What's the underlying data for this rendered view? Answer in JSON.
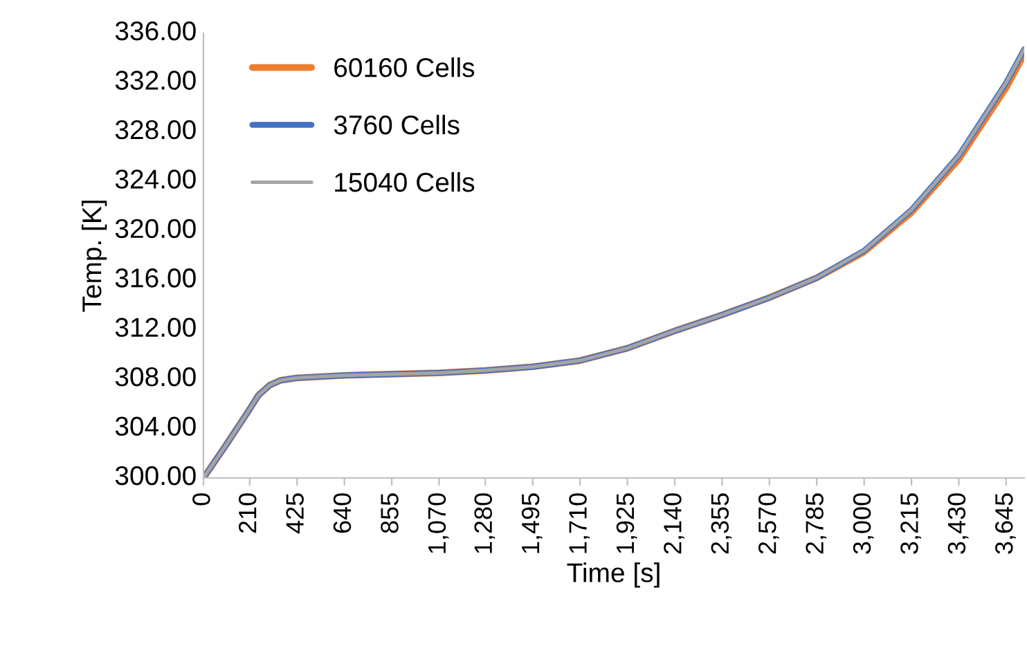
{
  "chart_data": {
    "type": "line",
    "xlabel": "Time [s]",
    "ylabel": "Temp. [K]",
    "x": [
      0,
      100,
      200,
      250,
      300,
      350,
      425,
      640,
      855,
      1070,
      1280,
      1495,
      1710,
      1925,
      2140,
      2355,
      2570,
      2785,
      3000,
      3215,
      3430,
      3645,
      3727
    ],
    "series": [
      {
        "name": "60160 Cells",
        "color": "#ed7d31",
        "values": [
          300.0,
          302.6,
          305.3,
          306.7,
          307.5,
          307.9,
          308.1,
          308.3,
          308.4,
          308.5,
          308.7,
          309.0,
          309.5,
          310.5,
          311.9,
          313.2,
          314.6,
          316.2,
          318.3,
          321.5,
          325.8,
          331.6,
          334.3
        ]
      },
      {
        "name": "3760 Cells",
        "color": "#4472c4",
        "values": [
          300.0,
          302.6,
          305.3,
          306.7,
          307.5,
          307.9,
          308.1,
          308.3,
          308.4,
          308.5,
          308.7,
          309.0,
          309.5,
          310.5,
          311.9,
          313.2,
          314.6,
          316.2,
          318.4,
          321.7,
          326.1,
          332.0,
          334.7
        ]
      },
      {
        "name": "15040 Cells",
        "color": "#a5a5a5",
        "values": [
          300.0,
          302.6,
          305.3,
          306.7,
          307.5,
          307.9,
          308.1,
          308.3,
          308.4,
          308.5,
          308.7,
          309.0,
          309.5,
          310.5,
          311.9,
          313.2,
          314.6,
          316.2,
          318.4,
          321.7,
          326.1,
          332.0,
          334.7
        ]
      }
    ],
    "xlim": [
      0,
      3727
    ],
    "xticks": [
      {
        "value": 0,
        "label": "0"
      },
      {
        "value": 210,
        "label": "210"
      },
      {
        "value": 425,
        "label": "425"
      },
      {
        "value": 640,
        "label": "640"
      },
      {
        "value": 855,
        "label": "855"
      },
      {
        "value": 1070,
        "label": "1,070"
      },
      {
        "value": 1280,
        "label": "1,280"
      },
      {
        "value": 1495,
        "label": "1,495"
      },
      {
        "value": 1710,
        "label": "1,710"
      },
      {
        "value": 1925,
        "label": "1,925"
      },
      {
        "value": 2140,
        "label": "2,140"
      },
      {
        "value": 2355,
        "label": "2,355"
      },
      {
        "value": 2570,
        "label": "2,570"
      },
      {
        "value": 2785,
        "label": "2,785"
      },
      {
        "value": 3000,
        "label": "3,000"
      },
      {
        "value": 3215,
        "label": "3,215"
      },
      {
        "value": 3430,
        "label": "3,430"
      },
      {
        "value": 3645,
        "label": "3,645"
      }
    ],
    "ylim": [
      300,
      336
    ],
    "yticks": [
      {
        "value": 300,
        "label": "300.00"
      },
      {
        "value": 304,
        "label": "304.00"
      },
      {
        "value": 308,
        "label": "308.00"
      },
      {
        "value": 312,
        "label": "312.00"
      },
      {
        "value": 316,
        "label": "316.00"
      },
      {
        "value": 320,
        "label": "320.00"
      },
      {
        "value": 324,
        "label": "324.00"
      },
      {
        "value": 328,
        "label": "328.00"
      },
      {
        "value": 332,
        "label": "332.00"
      },
      {
        "value": 336,
        "label": "336.00"
      }
    ],
    "grid": false,
    "legend": "top left"
  }
}
